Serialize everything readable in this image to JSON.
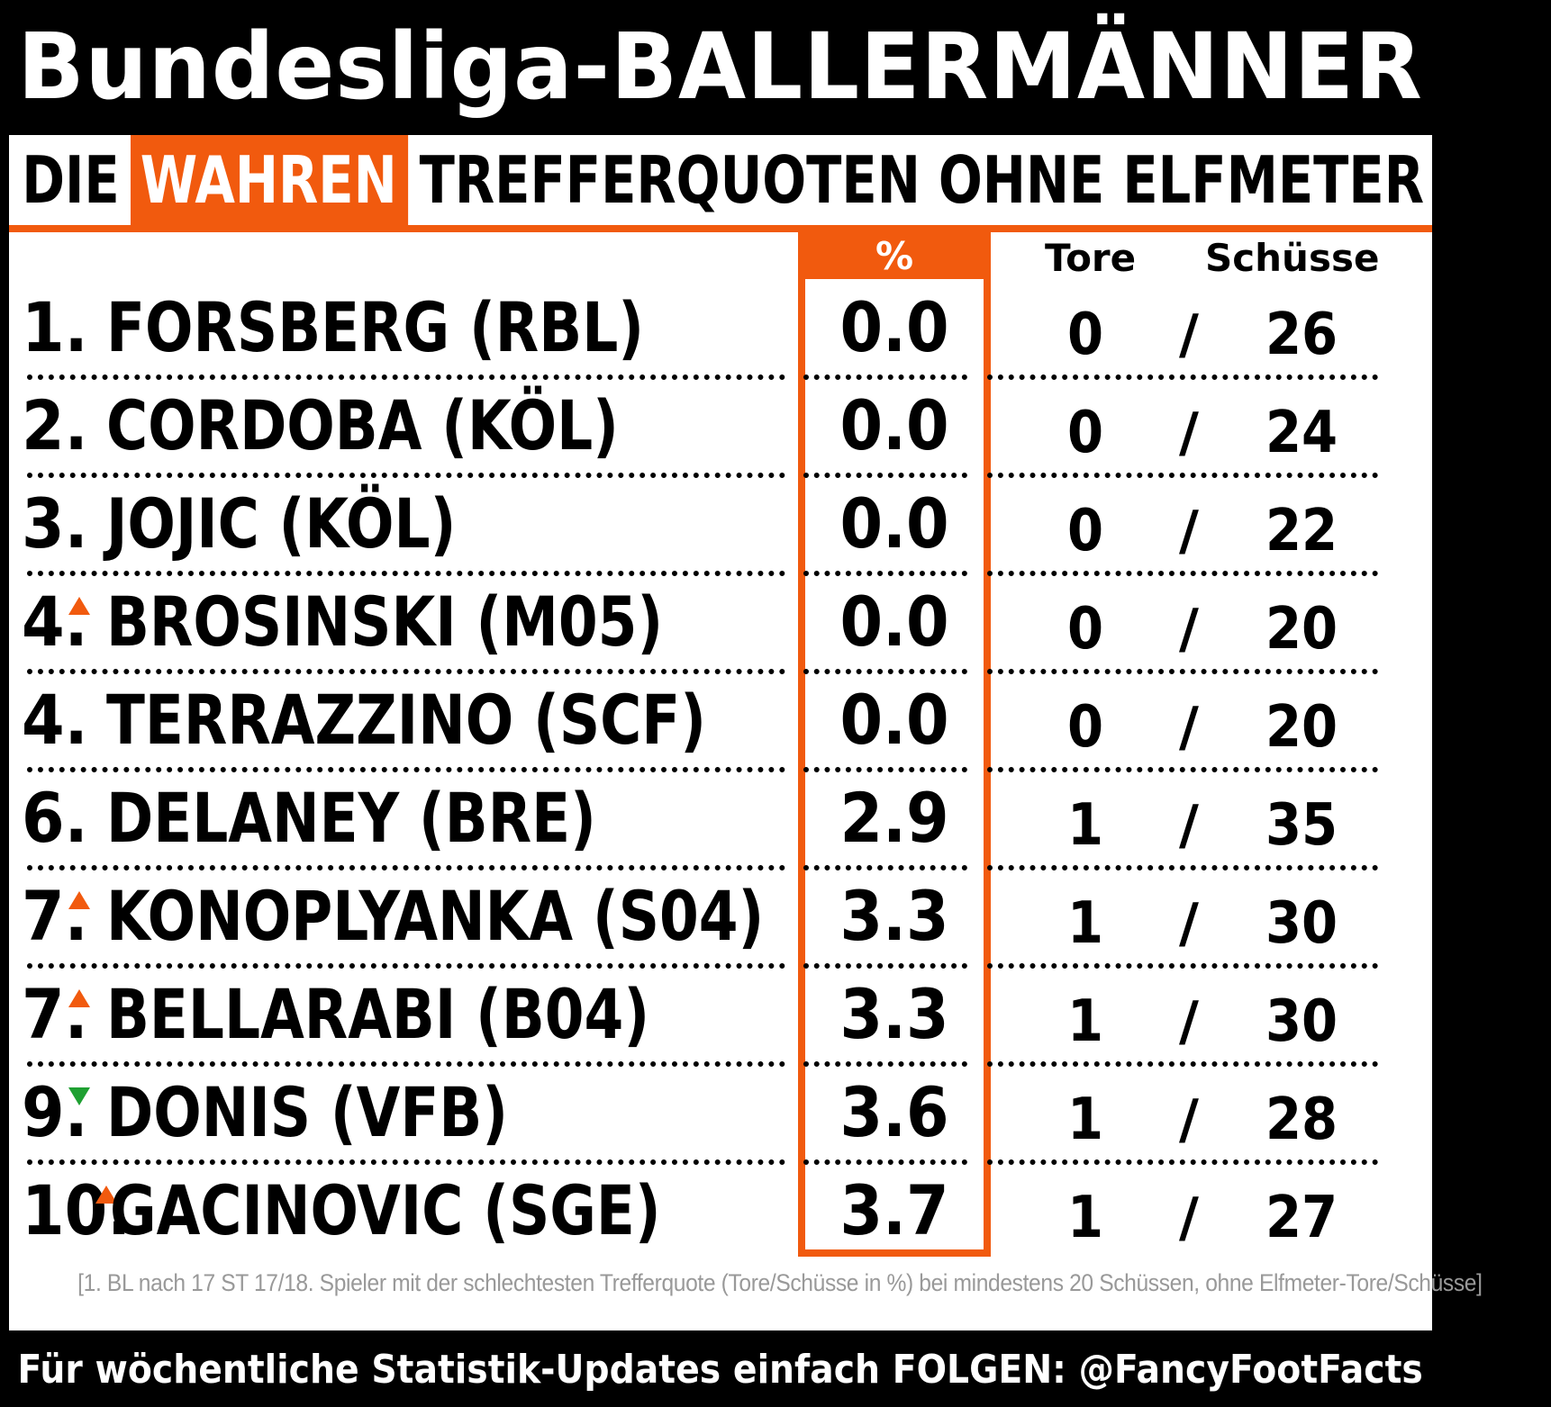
{
  "title": "Bundesliga-BALLERMÄNNER",
  "subtitle": {
    "pre": "DIE",
    "highlight": "WAHREN",
    "post": "TREFFERQUOTEN OHNE ELFMETER"
  },
  "columns": {
    "percent": "%",
    "goals": "Tore",
    "shots": "Schüsse"
  },
  "rows": [
    {
      "rank": "1.",
      "trend": "",
      "name": "FORSBERG (RBL)",
      "pct": "0.0",
      "goals": "0",
      "sep": "/",
      "shots": "26"
    },
    {
      "rank": "2.",
      "trend": "",
      "name": "CORDOBA (KÖL)",
      "pct": "0.0",
      "goals": "0",
      "sep": "/",
      "shots": "24"
    },
    {
      "rank": "3.",
      "trend": "",
      "name": "JOJIC (KÖL)",
      "pct": "0.0",
      "goals": "0",
      "sep": "/",
      "shots": "22"
    },
    {
      "rank": "4.",
      "trend": "up",
      "name": "BROSINSKI (M05)",
      "pct": "0.0",
      "goals": "0",
      "sep": "/",
      "shots": "20"
    },
    {
      "rank": "4.",
      "trend": "",
      "name": "TERRAZZINO (SCF)",
      "pct": "0.0",
      "goals": "0",
      "sep": "/",
      "shots": "20"
    },
    {
      "rank": "6.",
      "trend": "",
      "name": "DELANEY (BRE)",
      "pct": "2.9",
      "goals": "1",
      "sep": "/",
      "shots": "35"
    },
    {
      "rank": "7.",
      "trend": "up",
      "name": "KONOPLYANKA (S04)",
      "pct": "3.3",
      "goals": "1",
      "sep": "/",
      "shots": "30"
    },
    {
      "rank": "7.",
      "trend": "up",
      "name": "BELLARABI (B04)",
      "pct": "3.3",
      "goals": "1",
      "sep": "/",
      "shots": "30"
    },
    {
      "rank": "9.",
      "trend": "down",
      "name": "DONIS (VFB)",
      "pct": "3.6",
      "goals": "1",
      "sep": "/",
      "shots": "28"
    },
    {
      "rank": "10.",
      "trend": "up",
      "name": "GACINOVIC (SGE)",
      "pct": "3.7",
      "goals": "1",
      "sep": "/",
      "shots": "27"
    }
  ],
  "footnote": "[1. BL nach 17 ST 17/18. Spieler mit der schlechtesten Trefferquote (Tore/Schüsse in %) bei mindestens 20 Schüssen, ohne Elfmeter-Tore/Schüsse]",
  "footer": "Für wöchentliche Statistik-Updates einfach FOLGEN: @FancyFootFacts",
  "colors": {
    "accent": "#f15a0e",
    "trend_up": "#f15a0e",
    "trend_down": "#1fa032",
    "background": "#000000",
    "card": "#ffffff"
  }
}
